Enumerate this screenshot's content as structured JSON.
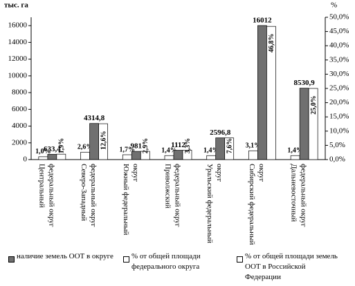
{
  "chart_data": {
    "type": "bar",
    "y_label": "тыс. га",
    "y2_label": "%",
    "categories": [
      "Центральный федеральный округ",
      "Северо-Западный федеральный округ",
      "Южный федеральный округ",
      "Приволжский федеральный округ",
      "Уральский федеральный округ",
      "Сибирский федеральный округ",
      "Дальневосточный федеральный округ"
    ],
    "series": [
      {
        "name": "% от общей площади федерального округа",
        "color": "#ffffff",
        "axis": "y2",
        "values": [
          1.0,
          2.6,
          1.7,
          1.4,
          1.4,
          3.1,
          1.4
        ],
        "value_labels": [
          "1,0%",
          "2,6%",
          "1,7%",
          "1,4%",
          "1,4%",
          "3,1%",
          "1,4%"
        ]
      },
      {
        "name": "наличие земель ООТ в округе",
        "color": "#707070",
        "values": [
          633.4,
          4314.8,
          981,
          1112,
          2596.8,
          16012,
          8530.9
        ],
        "value_labels": [
          "633,4",
          "4314,8",
          "981",
          "1112",
          "2596,8",
          "16012",
          "8530,9"
        ]
      },
      {
        "name": "% от общей площади земель ООТ в Российской Федерации",
        "color": "#ffffff",
        "axis": "y2",
        "values": [
          1.9,
          12.6,
          2.9,
          3.3,
          7.6,
          46.8,
          25.0
        ],
        "value_labels": [
          "1,9%",
          "12,6%",
          "2,9%",
          "3,3%",
          "7,6%",
          "46,8%",
          "25,0%"
        ]
      }
    ],
    "ylim": [
      0,
      17000
    ],
    "yticks": [
      0,
      2000,
      4000,
      6000,
      8000,
      10000,
      12000,
      14000,
      16000
    ],
    "y2lim": [
      0,
      50
    ],
    "y2ticks": [
      {
        "value": 0,
        "label": "0,0%"
      },
      {
        "value": 5,
        "label": "5,0%"
      },
      {
        "value": 10,
        "label": "10,0%"
      },
      {
        "value": 15,
        "label": "15,0%"
      },
      {
        "value": 20,
        "label": "20,0%"
      },
      {
        "value": 25,
        "label": "25,0%"
      },
      {
        "value": 30,
        "label": "30,0%"
      },
      {
        "value": 35,
        "label": "35,0%"
      },
      {
        "value": 40,
        "label": "40,0%"
      },
      {
        "value": 45,
        "label": "45,0%"
      },
      {
        "value": 50,
        "label": "50,0%"
      }
    ],
    "legend": "bottom"
  }
}
